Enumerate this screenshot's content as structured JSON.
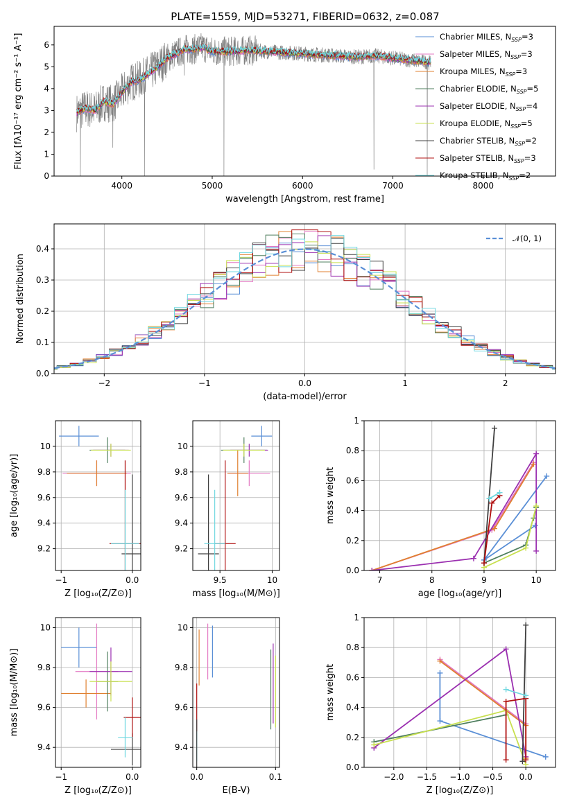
{
  "figure": {
    "title": "PLATE=1559, MJD=53271, FIBERID=0632, z=0.087"
  },
  "chart_data": [
    {
      "id": "spectrum",
      "type": "line",
      "xlabel": "wavelength [Angstrom, rest frame]",
      "ylabel": "Flux [fλ10⁻¹⁷ erg cm⁻² s⁻¹ A⁻¹]",
      "xlim": [
        3250,
        8800
      ],
      "ylim": [
        0,
        6.85
      ],
      "xticks": [
        4000,
        5000,
        6000,
        7000,
        8000
      ],
      "yticks": [
        0,
        1,
        2,
        3,
        4,
        5,
        6
      ],
      "observed_color": "#808080",
      "observed_spikes": [
        {
          "x": 3540,
          "y": 0
        },
        {
          "x": 3900,
          "y": 1.3
        },
        {
          "x": 4250,
          "y": 0
        },
        {
          "x": 4690,
          "y": 4.6
        },
        {
          "x": 5130,
          "y": 0
        },
        {
          "x": 6790,
          "y": 0.3
        },
        {
          "x": 7380,
          "y": 0
        }
      ],
      "model_continuum": [
        {
          "x": 3500,
          "y": 2.9
        },
        {
          "x": 3600,
          "y": 3.1
        },
        {
          "x": 3700,
          "y": 3.0
        },
        {
          "x": 3800,
          "y": 3.4
        },
        {
          "x": 3900,
          "y": 3.3
        },
        {
          "x": 4000,
          "y": 3.8
        },
        {
          "x": 4100,
          "y": 4.3
        },
        {
          "x": 4200,
          "y": 4.4
        },
        {
          "x": 4300,
          "y": 4.7
        },
        {
          "x": 4400,
          "y": 5.0
        },
        {
          "x": 4500,
          "y": 5.4
        },
        {
          "x": 4600,
          "y": 5.6
        },
        {
          "x": 4700,
          "y": 5.8
        },
        {
          "x": 4800,
          "y": 5.8
        },
        {
          "x": 4900,
          "y": 5.9
        },
        {
          "x": 5000,
          "y": 5.7
        },
        {
          "x": 5200,
          "y": 5.7
        },
        {
          "x": 5400,
          "y": 5.75
        },
        {
          "x": 5600,
          "y": 5.7
        },
        {
          "x": 5800,
          "y": 5.65
        },
        {
          "x": 6000,
          "y": 5.6
        },
        {
          "x": 6200,
          "y": 5.55
        },
        {
          "x": 6400,
          "y": 5.5
        },
        {
          "x": 6600,
          "y": 5.45
        },
        {
          "x": 6800,
          "y": 5.5
        },
        {
          "x": 7000,
          "y": 5.4
        },
        {
          "x": 7200,
          "y": 5.3
        },
        {
          "x": 7400,
          "y": 5.2
        }
      ],
      "legend": [
        {
          "label": "Chabrier MILES, N",
          "sub": "SSP",
          "tail": "=3",
          "color": "#5a8fd6"
        },
        {
          "label": "Salpeter MILES, N",
          "sub": "SSP",
          "tail": "=3",
          "color": "#e377c2"
        },
        {
          "label": "Kroupa MILES, N",
          "sub": "SSP",
          "tail": "=3",
          "color": "#e08030"
        },
        {
          "label": "Chabrier ELODIE, N",
          "sub": "SSP",
          "tail": "=5",
          "color": "#4f7f5f"
        },
        {
          "label": "Salpeter ELODIE, N",
          "sub": "SSP",
          "tail": "=4",
          "color": "#9b30b0"
        },
        {
          "label": "Kroupa ELODIE, N",
          "sub": "SSP",
          "tail": "=5",
          "color": "#c8e050"
        },
        {
          "label": "Chabrier STELIB, N",
          "sub": "SSP",
          "tail": "=2",
          "color": "#404040"
        },
        {
          "label": "Salpeter STELIB, N",
          "sub": "SSP",
          "tail": "=3",
          "color": "#b01010"
        },
        {
          "label": "Kroupa STELIB, N",
          "sub": "SSP",
          "tail": "=2",
          "color": "#70d8e0"
        }
      ]
    },
    {
      "id": "residuals",
      "type": "step",
      "xlabel": "(data-model)/error",
      "ylabel": "Normed distribution",
      "xlim": [
        -2.5,
        2.5
      ],
      "ylim": [
        0,
        0.48
      ],
      "xticks": [
        -2,
        -1,
        0,
        1,
        2
      ],
      "yticks": [
        0.0,
        0.1,
        0.2,
        0.3,
        0.4
      ],
      "curve_label": "𝒩(0, 1)",
      "curve_color": "#5a8fd6",
      "bins": 40
    },
    {
      "id": "age-z",
      "type": "errorbar",
      "xlabel": "Z [log₁₀(Z/Z⊙)]",
      "ylabel": "age  [log₁₀(age/yr)]",
      "xlim": [
        -1.08,
        0.12
      ],
      "ylim": [
        9.03,
        10.2
      ],
      "xticks": [
        -1,
        0
      ],
      "yticks": [
        9.2,
        9.4,
        9.6,
        9.8,
        10.0
      ],
      "points": [
        {
          "x": -0.75,
          "y": 10.08,
          "xerr": 0.28,
          "yerr": 0.08,
          "color": "#5a8fd6"
        },
        {
          "x": -0.5,
          "y": 9.79,
          "xerr": 0.48,
          "yerr": 0.1,
          "color": "#e377c2"
        },
        {
          "x": -0.5,
          "y": 9.79,
          "xerr": 0.42,
          "yerr": 0.1,
          "color": "#e08030"
        },
        {
          "x": -0.35,
          "y": 9.97,
          "xerr": 0.25,
          "yerr": 0.1,
          "color": "#4f7f5f"
        },
        {
          "x": -0.3,
          "y": 9.97,
          "xerr": 0.25,
          "yerr": 0.05,
          "color": "#9b30b0"
        },
        {
          "x": -0.3,
          "y": 9.97,
          "xerr": 0.28,
          "yerr": 0.05,
          "color": "#c8e050"
        },
        {
          "x": 0.0,
          "y": 9.16,
          "xerr": 0.15,
          "yerr": 0.62,
          "color": "#404040"
        },
        {
          "x": -0.1,
          "y": 9.24,
          "xerr": 0.22,
          "yerr": 0.65,
          "color": "#b01010"
        },
        {
          "x": -0.1,
          "y": 9.24,
          "xerr": 0.2,
          "yerr": 0.42,
          "color": "#70d8e0"
        }
      ]
    },
    {
      "id": "age-mass",
      "type": "errorbar",
      "xlabel": "mass [log₁₀(M/M⊙)]",
      "ylabel": "",
      "xlim": [
        9.24,
        10.07
      ],
      "ylim": [
        9.03,
        10.2
      ],
      "xticks": [
        9.5,
        10.0
      ],
      "yticks": [
        9.2,
        9.4,
        9.6,
        9.8,
        10.0
      ],
      "points": [
        {
          "x": 9.9,
          "y": 10.08,
          "xerr": 0.1,
          "yerr": 0.08,
          "color": "#5a8fd6"
        },
        {
          "x": 9.78,
          "y": 9.79,
          "xerr": 0.2,
          "yerr": 0.1,
          "color": "#e377c2"
        },
        {
          "x": 9.67,
          "y": 9.79,
          "xerr": 0.1,
          "yerr": 0.18,
          "color": "#e08030"
        },
        {
          "x": 9.73,
          "y": 9.97,
          "xerr": 0.22,
          "yerr": 0.1,
          "color": "#4f7f5f"
        },
        {
          "x": 9.78,
          "y": 9.97,
          "xerr": 0.18,
          "yerr": 0.05,
          "color": "#9b30b0"
        },
        {
          "x": 9.73,
          "y": 9.97,
          "xerr": 0.2,
          "yerr": 0.05,
          "color": "#c8e050"
        },
        {
          "x": 9.39,
          "y": 9.16,
          "xerr": 0.1,
          "yerr": 0.62,
          "color": "#404040"
        },
        {
          "x": 9.55,
          "y": 9.24,
          "xerr": 0.1,
          "yerr": 0.65,
          "color": "#b01010"
        },
        {
          "x": 9.45,
          "y": 9.24,
          "xerr": 0.1,
          "yerr": 0.42,
          "color": "#70d8e0"
        }
      ]
    },
    {
      "id": "mw-age",
      "type": "line",
      "xlabel": "age  [log₁₀(age/yr)]",
      "ylabel": "mass weight",
      "xlim": [
        6.7,
        10.37
      ],
      "ylim": [
        0,
        1.0
      ],
      "xticks": [
        7,
        8,
        9,
        10
      ],
      "yticks": [
        0.0,
        0.2,
        0.4,
        0.6,
        0.8,
        1.0
      ],
      "series": [
        {
          "color": "#5a8fd6",
          "points": [
            [
              10.2,
              0.63
            ],
            [
              9.0,
              0.07
            ],
            [
              9.98,
              0.3
            ]
          ]
        },
        {
          "color": "#e377c2",
          "points": [
            [
              6.85,
              0.0
            ],
            [
              9.15,
              0.27
            ],
            [
              9.95,
              0.72
            ]
          ]
        },
        {
          "color": "#e08030",
          "points": [
            [
              6.85,
              0.0
            ],
            [
              9.2,
              0.28
            ],
            [
              9.95,
              0.71
            ]
          ]
        },
        {
          "color": "#4f7f5f",
          "points": [
            [
              9.0,
              0.05
            ],
            [
              9.8,
              0.17
            ],
            [
              10.0,
              0.42
            ],
            [
              9.95,
              0.35
            ]
          ]
        },
        {
          "color": "#9b30b0",
          "points": [
            [
              6.85,
              0.0
            ],
            [
              8.8,
              0.08
            ],
            [
              10.0,
              0.78
            ],
            [
              10.0,
              0.13
            ]
          ]
        },
        {
          "color": "#c8e050",
          "points": [
            [
              9.0,
              0.02
            ],
            [
              9.8,
              0.15
            ],
            [
              10.0,
              0.43
            ]
          ]
        },
        {
          "color": "#404040",
          "points": [
            [
              9.0,
              0.05
            ],
            [
              9.2,
              0.95
            ]
          ]
        },
        {
          "color": "#b01010",
          "points": [
            [
              9.0,
              0.05
            ],
            [
              9.15,
              0.45
            ],
            [
              9.3,
              0.5
            ]
          ]
        },
        {
          "color": "#70d8e0",
          "points": [
            [
              9.1,
              0.48
            ],
            [
              9.3,
              0.52
            ]
          ]
        }
      ]
    },
    {
      "id": "mass-z",
      "type": "errorbar",
      "xlabel": "Z [log₁₀(Z/Z⊙)]",
      "ylabel": "mass [log₁₀(M/M⊙)]",
      "xlim": [
        -1.08,
        0.12
      ],
      "ylim": [
        9.3,
        10.05
      ],
      "xticks": [
        -1,
        0
      ],
      "yticks": [
        9.4,
        9.6,
        9.8,
        10.0
      ],
      "points": [
        {
          "x": -0.75,
          "y": 9.9,
          "xerr": 0.25,
          "yerr": 0.1,
          "color": "#5a8fd6"
        },
        {
          "x": -0.5,
          "y": 9.78,
          "xerr": 0.3,
          "yerr": 0.24,
          "color": "#e377c2"
        },
        {
          "x": -0.65,
          "y": 9.67,
          "xerr": 0.35,
          "yerr": 0.07,
          "color": "#e08030"
        },
        {
          "x": -0.35,
          "y": 9.73,
          "xerr": 0.15,
          "yerr": 0.15,
          "color": "#4f7f5f"
        },
        {
          "x": -0.3,
          "y": 9.78,
          "xerr": 0.3,
          "yerr": 0.12,
          "color": "#9b30b0"
        },
        {
          "x": -0.3,
          "y": 9.73,
          "xerr": 0.3,
          "yerr": 0.1,
          "color": "#c8e050"
        },
        {
          "x": 0.0,
          "y": 9.39,
          "xerr": 0.3,
          "yerr": 0.08,
          "color": "#404040"
        },
        {
          "x": 0.0,
          "y": 9.55,
          "xerr": 0.12,
          "yerr": 0.1,
          "color": "#b01010"
        },
        {
          "x": -0.1,
          "y": 9.45,
          "xerr": 0.1,
          "yerr": 0.1,
          "color": "#70d8e0"
        }
      ]
    },
    {
      "id": "mass-ebv",
      "type": "errorbar",
      "xlabel": "E(B-V)",
      "ylabel": "",
      "xlim": [
        -0.005,
        0.105
      ],
      "ylim": [
        9.3,
        10.05
      ],
      "xticks": [
        0.0,
        0.1
      ],
      "yticks": [
        9.4,
        9.6,
        9.8,
        10.0
      ],
      "xtick_labels": [
        "0.0",
        "0.1"
      ],
      "points": [
        {
          "x": 0.02,
          "y": 9.88,
          "yerr": 0.13,
          "color": "#5a8fd6"
        },
        {
          "x": 0.0,
          "y": 9.47,
          "yerr": 0.14,
          "color": "#70d8e0"
        },
        {
          "x": 0.003,
          "y": 9.85,
          "yerr": 0.14,
          "color": "#e08030"
        },
        {
          "x": 0.014,
          "y": 9.88,
          "yerr": 0.14,
          "color": "#e377c2"
        },
        {
          "x": 0.094,
          "y": 9.69,
          "yerr": 0.2,
          "color": "#4f7f5f"
        },
        {
          "x": 0.097,
          "y": 9.72,
          "yerr": 0.2,
          "color": "#9b30b0"
        },
        {
          "x": 0.1,
          "y": 9.68,
          "yerr": 0.18,
          "color": "#c8e050"
        },
        {
          "x": 0.0,
          "y": 9.6,
          "yerr": 0.12,
          "color": "#b01010"
        },
        {
          "x": 0.0,
          "y": 9.42,
          "yerr": 0.12,
          "color": "#404040"
        }
      ]
    },
    {
      "id": "mw-z",
      "type": "line",
      "xlabel": "Z [log₁₀(Z/Z⊙)]",
      "ylabel": "mass weight",
      "xlim": [
        -2.45,
        0.45
      ],
      "ylim": [
        0,
        1.0
      ],
      "xticks": [
        -2.0,
        -1.5,
        -1.0,
        -0.5,
        0.0
      ],
      "yticks": [
        0.0,
        0.2,
        0.4,
        0.6,
        0.8,
        1.0
      ],
      "xtick_labels": [
        "−2.0",
        "−1.5",
        "−1.0",
        "−0.5",
        "0.0"
      ],
      "series": [
        {
          "color": "#5a8fd6",
          "points": [
            [
              -1.3,
              0.63
            ],
            [
              -1.3,
              0.31
            ],
            [
              0.3,
              0.07
            ]
          ]
        },
        {
          "color": "#e377c2",
          "points": [
            [
              -1.3,
              0.72
            ],
            [
              0.0,
              0.29
            ]
          ]
        },
        {
          "color": "#e08030",
          "points": [
            [
              -1.3,
              0.71
            ],
            [
              0.0,
              0.28
            ],
            [
              0.0,
              0.06
            ]
          ]
        },
        {
          "color": "#4f7f5f",
          "points": [
            [
              -2.3,
              0.17
            ],
            [
              -0.3,
              0.35
            ]
          ]
        },
        {
          "color": "#9b30b0",
          "points": [
            [
              -2.3,
              0.13
            ],
            [
              -0.3,
              0.79
            ],
            [
              0.0,
              0.07
            ]
          ]
        },
        {
          "color": "#c8e050",
          "points": [
            [
              -2.3,
              0.15
            ],
            [
              -0.3,
              0.38
            ],
            [
              0.0,
              0.02
            ]
          ]
        },
        {
          "color": "#404040",
          "points": [
            [
              -0.05,
              0.04
            ],
            [
              0.0,
              0.95
            ]
          ]
        },
        {
          "color": "#b01010",
          "points": [
            [
              -0.3,
              0.05
            ],
            [
              -0.3,
              0.44
            ],
            [
              0.0,
              0.46
            ],
            [
              0.0,
              0.05
            ]
          ]
        },
        {
          "color": "#70d8e0",
          "points": [
            [
              -0.3,
              0.52
            ],
            [
              0.0,
              0.48
            ]
          ]
        }
      ]
    }
  ]
}
